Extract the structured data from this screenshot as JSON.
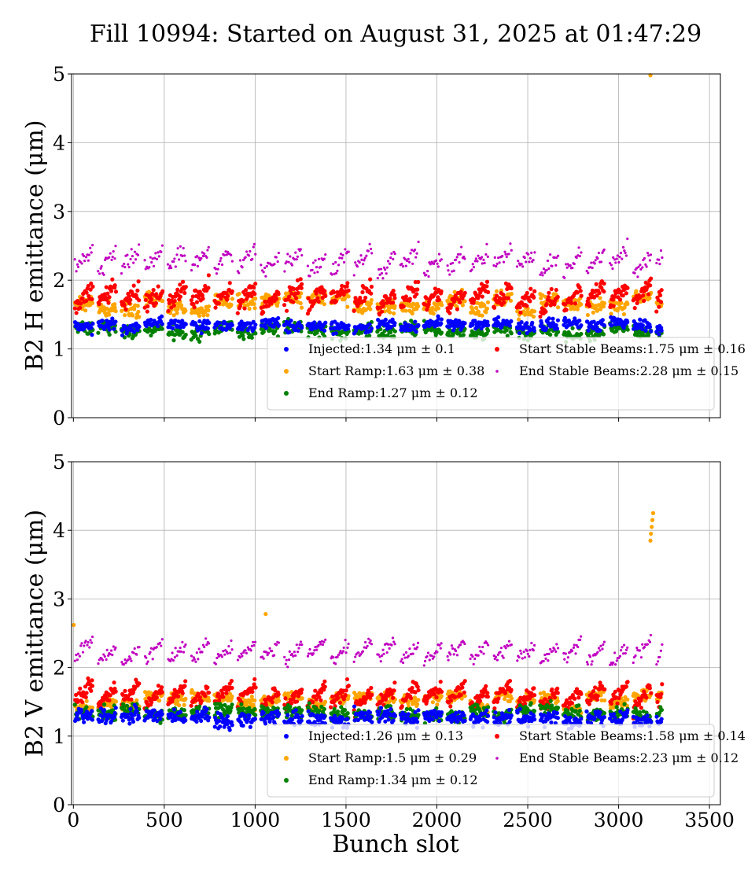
{
  "title": "Fill 10994: Started on August 31, 2025 at 01:47:29",
  "xlabel": "Bunch slot",
  "colors": {
    "injected": "#0000ff",
    "start_ramp": "#ffa500",
    "end_ramp": "#008000",
    "start_stable": "#ff0000",
    "end_stable": "#c000c0"
  },
  "chart_data": [
    {
      "type": "scatter",
      "ylabel": "B2 H emittance (μm)",
      "xlim": [
        -10,
        3560
      ],
      "ylim": [
        0,
        5
      ],
      "xticks": [
        0,
        500,
        1000,
        1500,
        2000,
        2500,
        3000,
        3500
      ],
      "xtick_labels": [
        "",
        "",
        "",
        "",
        "",
        "",
        "",
        ""
      ],
      "yticks": [
        0,
        1,
        2,
        3,
        4,
        5
      ],
      "ytick_labels": [
        "0",
        "1",
        "2",
        "3",
        "4",
        "5"
      ],
      "grid": true,
      "legend_position": "lower-right",
      "series": [
        {
          "key": "injected",
          "legend": "Injected:1.34 μm ± 0.1",
          "mean": 1.34,
          "std": 0.1
        },
        {
          "key": "start_ramp",
          "legend": "Start Ramp:1.63 μm ± 0.38",
          "mean": 1.63,
          "std": 0.38
        },
        {
          "key": "end_ramp",
          "legend": "End Ramp:1.27 μm ± 0.12",
          "mean": 1.27,
          "std": 0.12
        },
        {
          "key": "start_stable",
          "legend": "Start Stable Beams:1.75 μm ± 0.16",
          "mean": 1.75,
          "std": 0.16
        },
        {
          "key": "end_stable",
          "legend": "End Stable Beams:2.28 μm ± 0.15",
          "mean": 2.28,
          "std": 0.15
        }
      ],
      "outliers": [
        {
          "series": "start_ramp",
          "x": 3175,
          "y": 4.98
        }
      ]
    },
    {
      "type": "scatter",
      "ylabel": "B2 V emittance (μm)",
      "xlim": [
        -10,
        3560
      ],
      "ylim": [
        0,
        5
      ],
      "xticks": [
        0,
        500,
        1000,
        1500,
        2000,
        2500,
        3000,
        3500
      ],
      "xtick_labels": [
        "0",
        "500",
        "1000",
        "1500",
        "2000",
        "2500",
        "3000",
        "3500"
      ],
      "yticks": [
        0,
        1,
        2,
        3,
        4,
        5
      ],
      "ytick_labels": [
        "0",
        "1",
        "2",
        "3",
        "4",
        "5"
      ],
      "grid": true,
      "legend_position": "lower-right",
      "series": [
        {
          "key": "injected",
          "legend": "Injected:1.26 μm ± 0.13",
          "mean": 1.26,
          "std": 0.13
        },
        {
          "key": "start_ramp",
          "legend": "Start Ramp:1.5 μm ± 0.29",
          "mean": 1.5,
          "std": 0.29
        },
        {
          "key": "end_ramp",
          "legend": "End Ramp:1.34 μm ± 0.12",
          "mean": 1.34,
          "std": 0.12
        },
        {
          "key": "start_stable",
          "legend": "Start Stable Beams:1.58 μm ± 0.14",
          "mean": 1.58,
          "std": 0.14
        },
        {
          "key": "end_stable",
          "legend": "End Stable Beams:2.23 μm ± 0.12",
          "mean": 2.23,
          "std": 0.12
        }
      ],
      "outliers": [
        {
          "series": "start_ramp",
          "x": 3175,
          "y": 3.85
        },
        {
          "series": "start_ramp",
          "x": 3178,
          "y": 3.95
        },
        {
          "series": "start_ramp",
          "x": 3182,
          "y": 4.05
        },
        {
          "series": "start_ramp",
          "x": 3186,
          "y": 4.15
        },
        {
          "series": "start_ramp",
          "x": 3190,
          "y": 4.25
        },
        {
          "series": "start_ramp",
          "x": 1058,
          "y": 2.78
        },
        {
          "series": "start_ramp",
          "x": 2,
          "y": 2.62
        }
      ]
    }
  ]
}
